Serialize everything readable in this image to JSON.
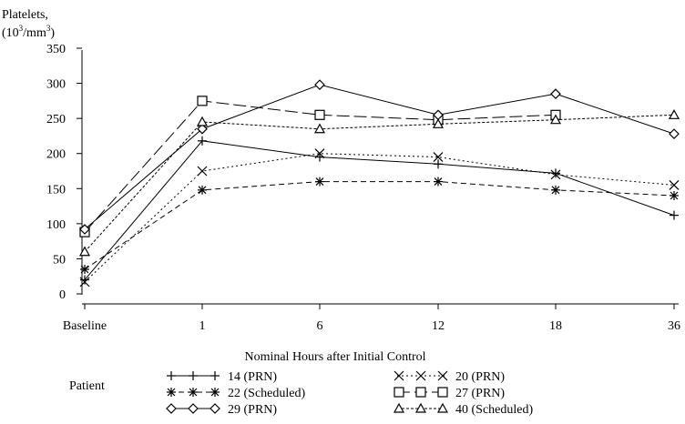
{
  "chart_data": {
    "type": "line",
    "ylabel_line1": "Platelets,",
    "ylabel_line2_pre": "(10",
    "ylabel_line2_sup": "3",
    "ylabel_line2_post": "/mm",
    "ylabel_line2_sup2": "3",
    "ylabel_line2_end": ")",
    "xlabel": "Nominal Hours after Initial Control",
    "categories": [
      "Baseline",
      "1",
      "6",
      "12",
      "18",
      "36"
    ],
    "yticks": [
      0,
      50,
      100,
      150,
      200,
      250,
      300,
      350
    ],
    "ylim": [
      0,
      365
    ],
    "legend_title": "Patient",
    "legend_placement": "bottom",
    "series": [
      {
        "name": "14 (PRN)",
        "marker": "plus",
        "dash": "solid",
        "values": [
          20,
          218,
          195,
          185,
          172,
          112
        ]
      },
      {
        "name": "20 (PRN)",
        "marker": "x",
        "dash": "dotted",
        "values": [
          17,
          175,
          200,
          195,
          170,
          155
        ]
      },
      {
        "name": "22 (Scheduled)",
        "marker": "star",
        "dash": "dashed",
        "values": [
          35,
          148,
          160,
          160,
          148,
          140
        ]
      },
      {
        "name": "27 (PRN)",
        "marker": "square",
        "dash": "longdash",
        "values": [
          88,
          275,
          255,
          248,
          255,
          null
        ]
      },
      {
        "name": "29 (PRN)",
        "marker": "diamond",
        "dash": "solid",
        "values": [
          92,
          235,
          298,
          255,
          285,
          228
        ]
      },
      {
        "name": "40 (Scheduled)",
        "marker": "triangle",
        "dash": "shortdot",
        "values": [
          60,
          245,
          235,
          242,
          248,
          255
        ]
      }
    ]
  }
}
